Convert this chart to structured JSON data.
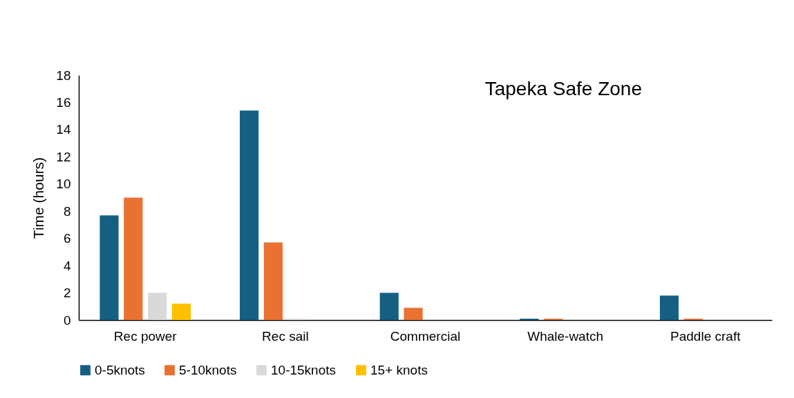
{
  "chart_data": {
    "type": "bar",
    "title": "Tapeka Safe Zone",
    "ylabel": "Time (hours)",
    "categories": [
      "Rec power",
      "Rec sail",
      "Commercial",
      "Whale-watch",
      "Paddle craft"
    ],
    "series": [
      {
        "name": "0-5knots",
        "color": "#156082",
        "values": [
          7.7,
          15.4,
          2.0,
          0.1,
          1.8
        ]
      },
      {
        "name": "5-10knots",
        "color": "#e97132",
        "values": [
          9.0,
          5.7,
          0.9,
          0.1,
          0.1
        ]
      },
      {
        "name": "10-15knots",
        "color": "#d9d9d9",
        "values": [
          2.0,
          0.1,
          0,
          0,
          0
        ]
      },
      {
        "name": "15+ knots",
        "color": "#ffc000",
        "values": [
          1.2,
          0,
          0,
          0,
          0
        ]
      }
    ],
    "ylim": [
      0,
      18
    ],
    "yticks": [
      0,
      2,
      4,
      6,
      8,
      10,
      12,
      14,
      16,
      18
    ],
    "grid": false,
    "legend": "bottom"
  }
}
